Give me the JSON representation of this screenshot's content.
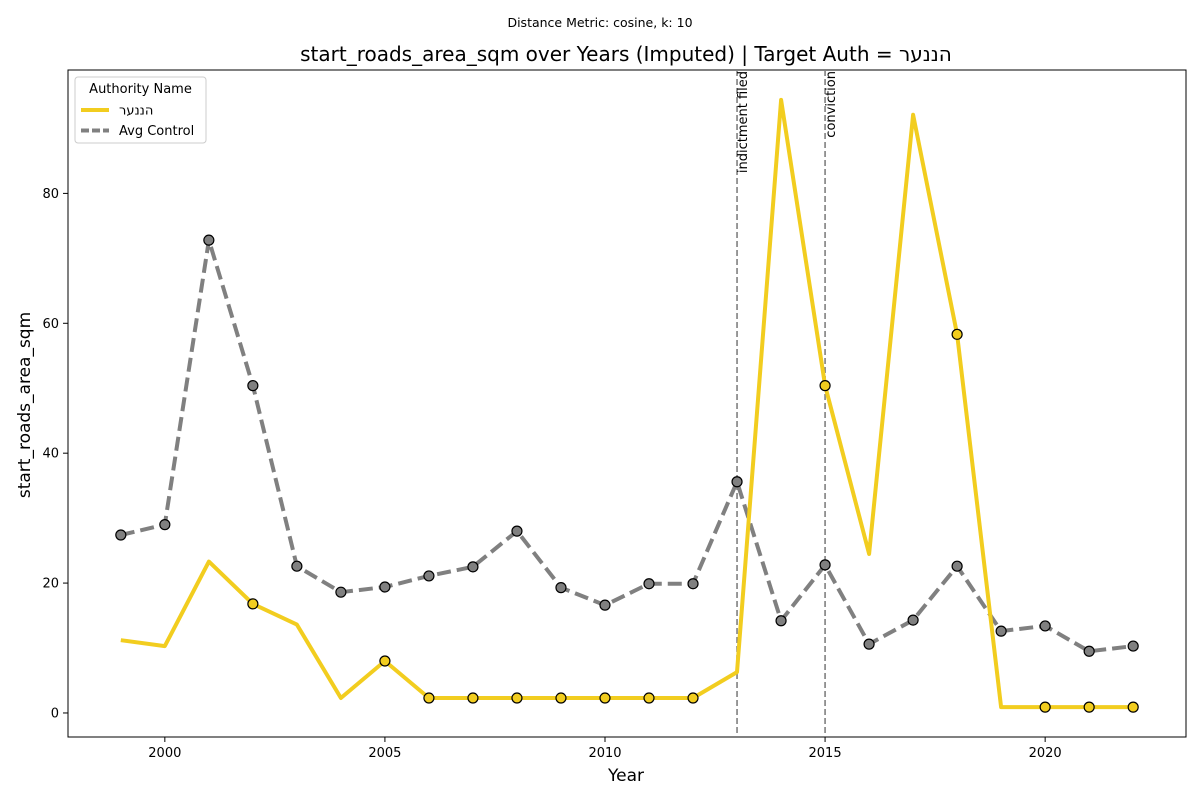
{
  "chart_data": {
    "type": "line",
    "suptitle": "Distance Metric: cosine, k: 10",
    "title": "start_roads_area_sqm over Years (Imputed) | Target Auth = הננער",
    "xlabel": "Year",
    "ylabel": "start_roads_area_sqm",
    "xlim": [
      1997.8,
      2023.2
    ],
    "ylim": [
      -3.7,
      99
    ],
    "xticks": [
      2000,
      2005,
      2010,
      2015,
      2020
    ],
    "yticks": [
      0,
      20,
      40,
      60,
      80
    ],
    "x": [
      1999,
      2000,
      2001,
      2002,
      2003,
      2004,
      2005,
      2006,
      2007,
      2008,
      2009,
      2010,
      2011,
      2012,
      2013,
      2014,
      2015,
      2016,
      2017,
      2018,
      2019,
      2020,
      2021,
      2022
    ],
    "series": [
      {
        "name": "הננער",
        "color": "#f2cd1f",
        "style": "solid",
        "values": [
          11.2,
          10.3,
          23.3,
          16.8,
          13.6,
          2.3,
          8.0,
          2.3,
          2.3,
          2.3,
          2.3,
          2.3,
          2.3,
          2.3,
          6.3,
          94.4,
          50.4,
          24.5,
          92.1,
          58.3,
          0.9,
          0.9,
          0.9,
          0.9
        ],
        "marked_years": [
          2002,
          2005,
          2006,
          2007,
          2008,
          2009,
          2010,
          2011,
          2012,
          2015,
          2018,
          2020,
          2021,
          2022
        ]
      },
      {
        "name": "Avg Control",
        "color": "#808080",
        "style": "dashed",
        "values": [
          27.4,
          29.0,
          72.8,
          50.4,
          22.6,
          18.6,
          19.4,
          21.1,
          22.5,
          28.0,
          19.3,
          16.6,
          19.9,
          19.9,
          35.6,
          14.2,
          22.8,
          10.6,
          14.3,
          22.6,
          12.6,
          13.4,
          9.5,
          10.3
        ],
        "marked_years": [
          1999,
          2000,
          2001,
          2002,
          2003,
          2004,
          2005,
          2006,
          2007,
          2008,
          2009,
          2010,
          2011,
          2012,
          2013,
          2014,
          2015,
          2016,
          2017,
          2018,
          2019,
          2020,
          2021,
          2022
        ]
      }
    ],
    "events": [
      {
        "x": 2013,
        "label": "indictment filed"
      },
      {
        "x": 2015,
        "label": "conviction"
      }
    ],
    "legend": {
      "title": "Authority Name",
      "position": "top-left"
    },
    "grid": false
  }
}
